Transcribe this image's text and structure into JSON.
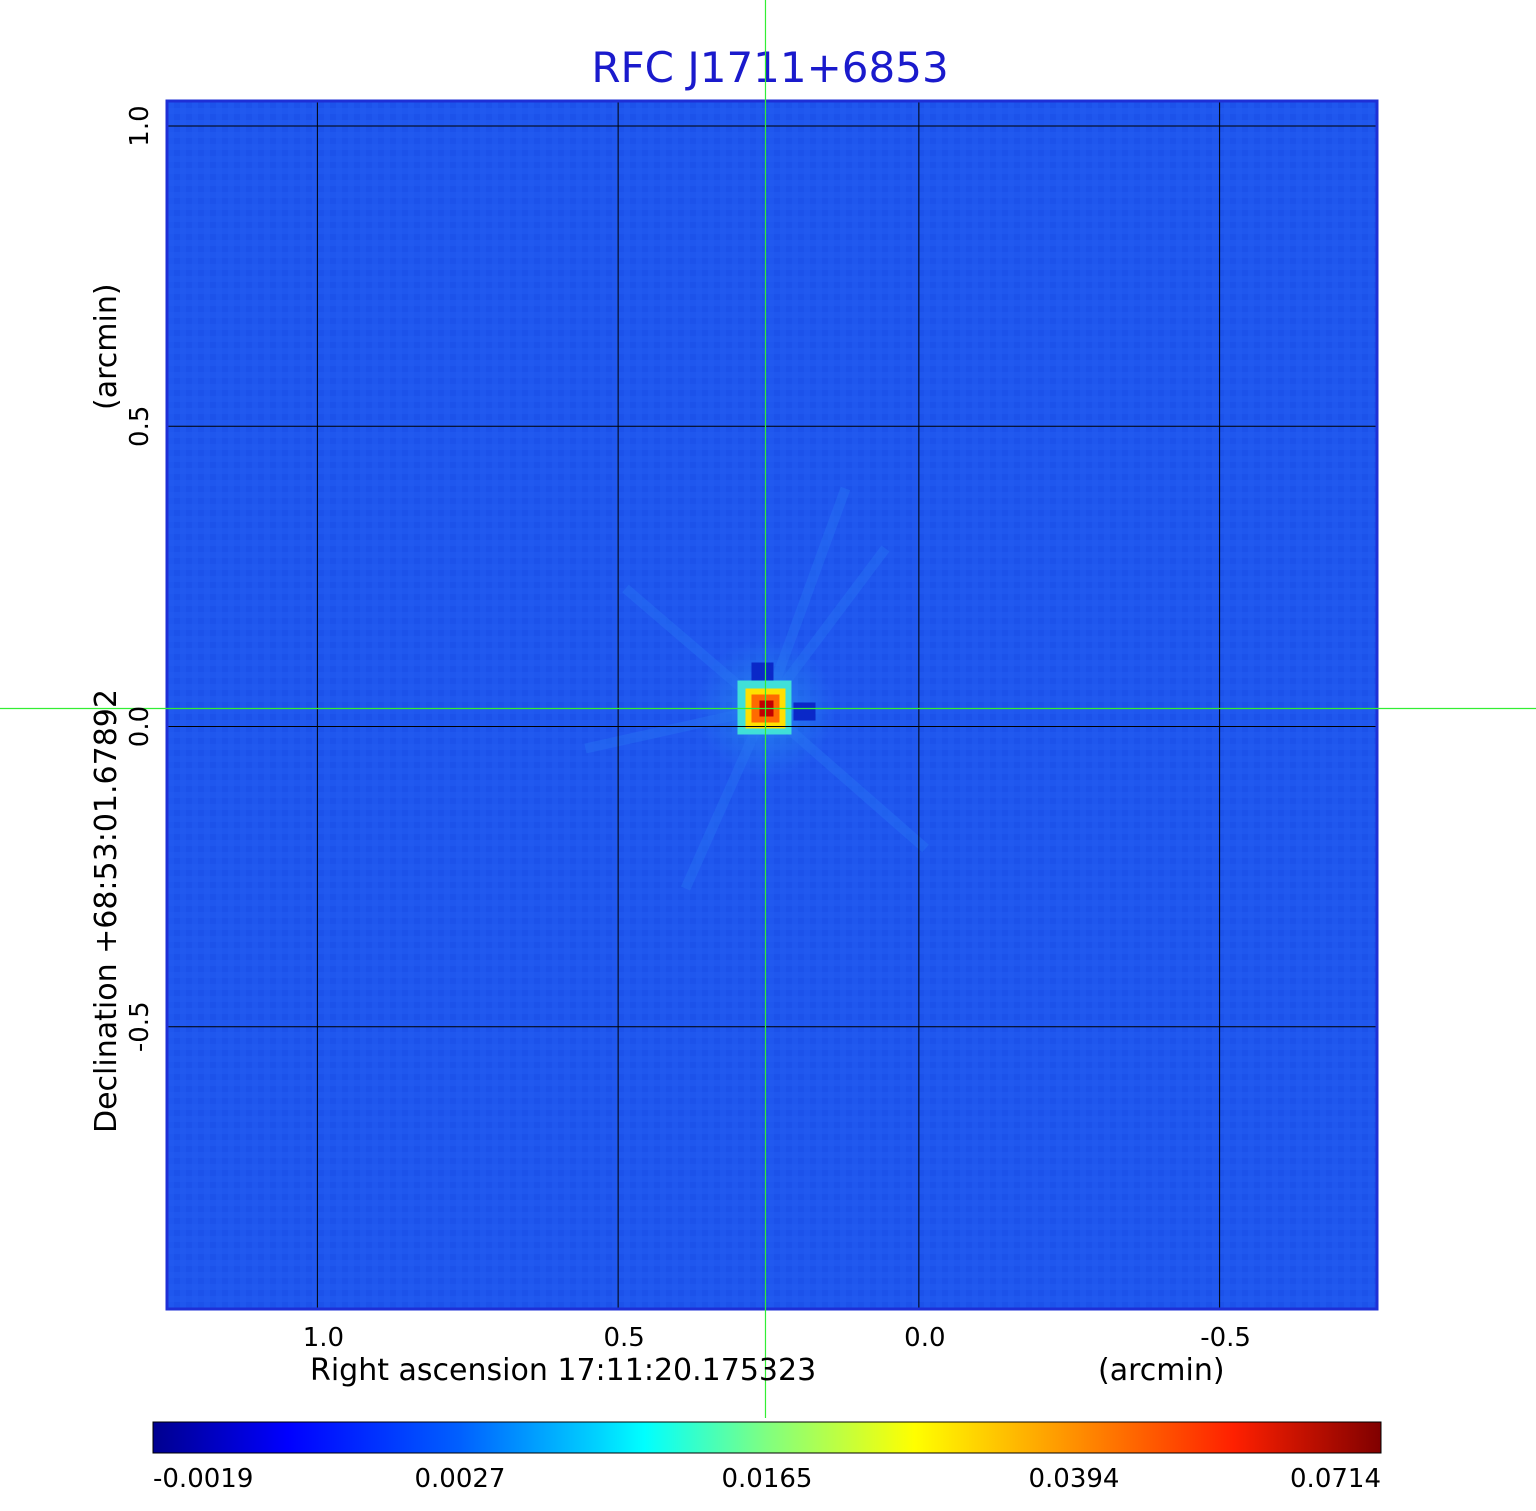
{
  "chart_data": {
    "type": "heatmap",
    "title": "RFC J1711+6853",
    "xlabel": "Right ascension  17:11:20.175323",
    "xunit": "(arcmin)",
    "ylabel": "Declination  +68:53:01.67892",
    "yunit": "(arcmin)",
    "x_ticks": [
      "1.0",
      "0.5",
      "0.0",
      "-0.5"
    ],
    "x_tick_values": [
      1.0,
      0.5,
      0.0,
      -0.5
    ],
    "y_ticks": [
      "1.0",
      "0.5",
      "0.0",
      "-0.5"
    ],
    "y_tick_values": [
      1.0,
      0.5,
      0.0,
      -0.5
    ],
    "xlim": [
      1.25,
      -0.76
    ],
    "ylim": [
      -0.97,
      1.04
    ],
    "grid": true,
    "crosshair": [
      0.255,
      0.03
    ],
    "source_peak": {
      "x": 0.255,
      "y": 0.03,
      "value": 0.0714
    },
    "colorbar": {
      "ticks": [
        "-0.0019",
        "0.0027",
        "0.0165",
        "0.0394",
        "0.0714"
      ],
      "values": [
        -0.0019,
        0.0027,
        0.0165,
        0.0394,
        0.0714
      ],
      "colormap": "jet"
    },
    "colors": {
      "background": "#1e55ee",
      "frame": "#1e2fd6",
      "title": "#1a1acc",
      "crosshair": "#33ee33",
      "grid": "#000000"
    }
  }
}
